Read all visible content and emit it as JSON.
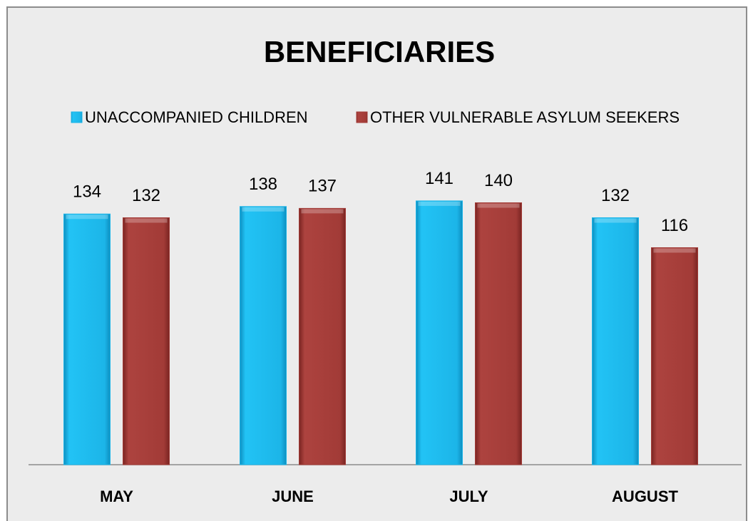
{
  "chart_data": {
    "type": "bar",
    "title": "BENEFICIARIES",
    "categories": [
      "MAY",
      "JUNE",
      "JULY",
      "AUGUST"
    ],
    "series": [
      {
        "name": "UNACCOMPANIED CHILDREN",
        "color": "#1cb5e8",
        "values": [
          134,
          138,
          141,
          132
        ]
      },
      {
        "name": "OTHER VULNERABLE ASYLUM SEEKERS",
        "color": "#a23b37",
        "values": [
          132,
          137,
          140,
          116
        ]
      }
    ]
  }
}
